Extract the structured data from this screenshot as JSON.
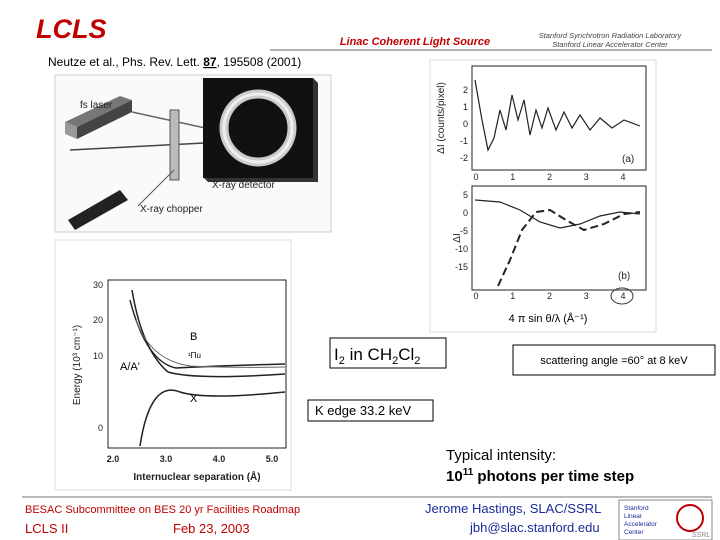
{
  "header": {
    "logo": "LCLS",
    "title": "Linac Coherent Light Source",
    "lab": [
      "Stanford Synchrotron Radiation Laboratory",
      "Stanford Linear Accelerator Center"
    ]
  },
  "citation": {
    "authors": "Neutze et al., Phs. Rev. Lett. ",
    "volume": "87",
    "rest": ", 195508 (2001)"
  },
  "figures": {
    "setup": {
      "labels": [
        "fs laser",
        "X-ray detector",
        "X-ray chopper"
      ]
    },
    "scattering": {
      "top_ylabel": "ΔI (counts/pixel)",
      "top_yticks": [
        "2",
        "1",
        "0",
        "-1",
        "-2"
      ],
      "top_xticks": [
        "0",
        "1",
        "2",
        "3",
        "4"
      ],
      "top_panel": "(a)",
      "bottom_ylabel": "ΔI",
      "bottom_yticks": [
        "5",
        "0",
        "-5",
        "-10",
        "-15"
      ],
      "bottom_xticks": [
        "0",
        "1",
        "2",
        "3",
        "4"
      ],
      "bottom_panel": "(b)",
      "xlabel": "4 π sin θ/λ (Å⁻¹)"
    },
    "potential": {
      "ylabel": "Energy (10³ cm⁻¹)",
      "yticks": [
        "30",
        "20",
        "10",
        "0"
      ],
      "xticks": [
        "2.0",
        "3.0",
        "4.0",
        "5.0"
      ],
      "xlabel": "Internuclear separation (Å)",
      "curves": [
        "B",
        "A/A'",
        "X",
        "¹Πu"
      ]
    }
  },
  "callouts": {
    "sample": [
      "I",
      "2",
      " in CH",
      "2",
      "Cl",
      "2"
    ],
    "angle": "scattering angle =60° at 8 keV",
    "edge": "K edge 33.2 keV",
    "intensity_title": "Typical intensity:",
    "intensity": [
      "10",
      "11",
      " photons per time step"
    ]
  },
  "footer": {
    "meeting": "BESAC Subcommittee on BES 20 yr Facilities Roadmap",
    "project": "LCLS II",
    "date": "Feb 23, 2003",
    "author": "Jerome Hastings, SLAC/SSRL",
    "email": "jbh@slac.stanford.edu",
    "logo_lines": [
      "Stanford",
      "Linear",
      "Accelerator",
      "Center"
    ],
    "ssrl": "SSRL"
  }
}
